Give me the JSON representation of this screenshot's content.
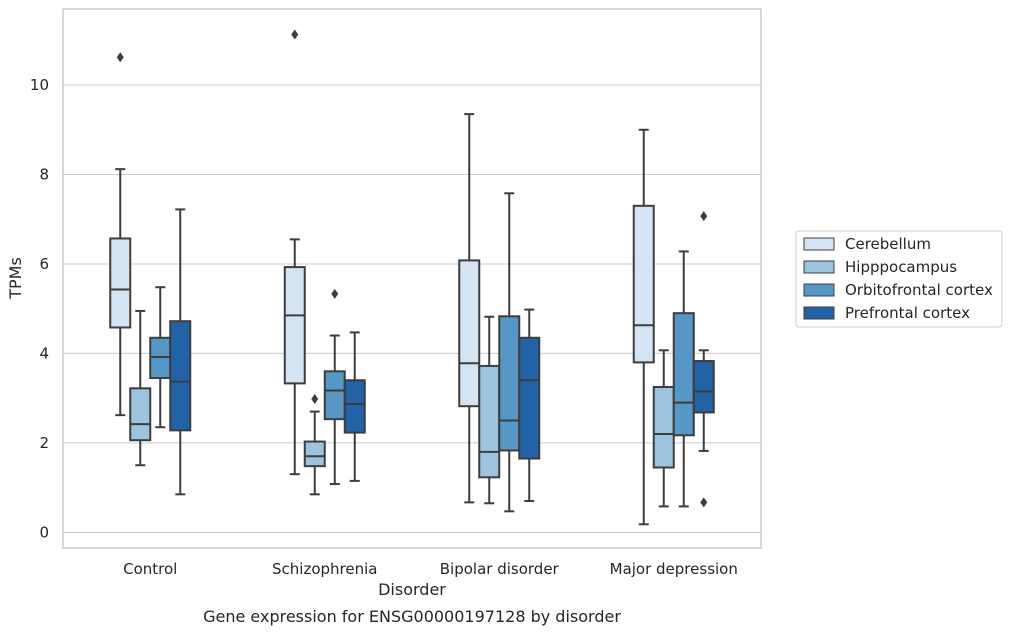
{
  "caption": "Gene expression for ENSG00000197128 by disorder",
  "chart_data": {
    "type": "box",
    "xlabel": "Disorder",
    "ylabel": "TPMs",
    "ylim": [
      -0.35,
      11.7
    ],
    "yticks": [
      0,
      2,
      4,
      6,
      8,
      10
    ],
    "grid": "horizontal",
    "legend_position": "right",
    "categories": [
      "Control",
      "Schizophrenia",
      "Bipolar disorder",
      "Major depression"
    ],
    "series": [
      {
        "name": "Cerebellum",
        "color": "#d4e4f2",
        "boxes": [
          {
            "whisker_low": 2.62,
            "q1": 4.58,
            "median": 5.43,
            "q3": 6.57,
            "whisker_high": 8.12,
            "outliers": [
              10.62
            ]
          },
          {
            "whisker_low": 1.3,
            "q1": 3.33,
            "median": 4.85,
            "q3": 5.93,
            "whisker_high": 6.55,
            "outliers": [
              11.13
            ]
          },
          {
            "whisker_low": 0.67,
            "q1": 2.82,
            "median": 3.78,
            "q3": 6.08,
            "whisker_high": 9.35,
            "outliers": []
          },
          {
            "whisker_low": 0.18,
            "q1": 3.8,
            "median": 4.63,
            "q3": 7.3,
            "whisker_high": 9.0,
            "outliers": []
          }
        ]
      },
      {
        "name": "Hipppocampus",
        "color": "#9dc4de",
        "boxes": [
          {
            "whisker_low": 1.5,
            "q1": 2.06,
            "median": 2.42,
            "q3": 3.22,
            "whisker_high": 4.95,
            "outliers": []
          },
          {
            "whisker_low": 0.85,
            "q1": 1.48,
            "median": 1.7,
            "q3": 2.03,
            "whisker_high": 2.7,
            "outliers": [
              2.98
            ]
          },
          {
            "whisker_low": 0.65,
            "q1": 1.23,
            "median": 1.8,
            "q3": 3.72,
            "whisker_high": 4.82,
            "outliers": []
          },
          {
            "whisker_low": 0.58,
            "q1": 1.45,
            "median": 2.2,
            "q3": 3.25,
            "whisker_high": 4.07,
            "outliers": []
          }
        ]
      },
      {
        "name": "Orbitofrontal cortex",
        "color": "#5697c6",
        "boxes": [
          {
            "whisker_low": 2.35,
            "q1": 3.45,
            "median": 3.92,
            "q3": 4.35,
            "whisker_high": 5.48,
            "outliers": []
          },
          {
            "whisker_low": 1.08,
            "q1": 2.53,
            "median": 3.17,
            "q3": 3.6,
            "whisker_high": 4.4,
            "outliers": [
              5.33
            ]
          },
          {
            "whisker_low": 0.47,
            "q1": 1.83,
            "median": 2.5,
            "q3": 4.83,
            "whisker_high": 7.58,
            "outliers": []
          },
          {
            "whisker_low": 0.58,
            "q1": 2.17,
            "median": 2.9,
            "q3": 4.9,
            "whisker_high": 6.28,
            "outliers": []
          }
        ]
      },
      {
        "name": "Prefrontal cortex",
        "color": "#2163a6",
        "boxes": [
          {
            "whisker_low": 0.85,
            "q1": 2.28,
            "median": 3.37,
            "q3": 4.72,
            "whisker_high": 7.22,
            "outliers": []
          },
          {
            "whisker_low": 1.15,
            "q1": 2.23,
            "median": 2.87,
            "q3": 3.4,
            "whisker_high": 4.47,
            "outliers": []
          },
          {
            "whisker_low": 0.7,
            "q1": 1.65,
            "median": 3.4,
            "q3": 4.35,
            "whisker_high": 4.98,
            "outliers": []
          },
          {
            "whisker_low": 1.82,
            "q1": 2.68,
            "median": 3.15,
            "q3": 3.83,
            "whisker_high": 4.07,
            "outliers": [
              7.07,
              0.67
            ]
          }
        ]
      }
    ]
  }
}
